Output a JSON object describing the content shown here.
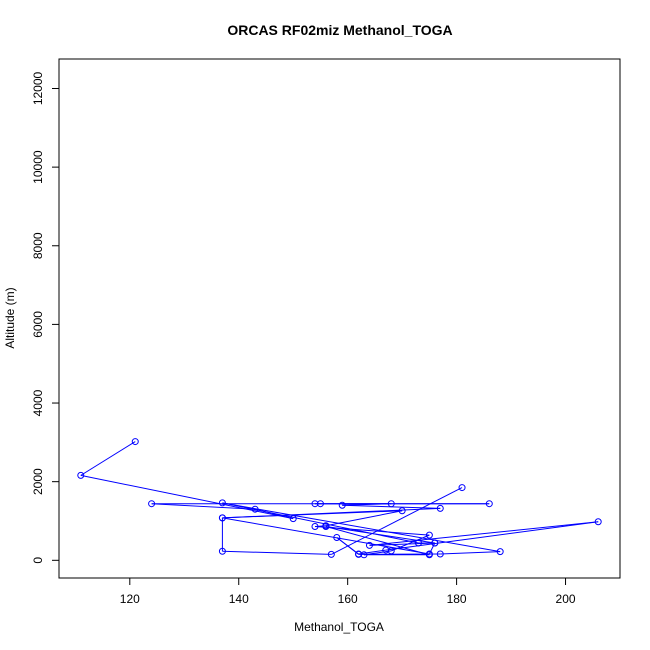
{
  "chart_data": {
    "type": "line",
    "title": "ORCAS RF02miz Methanol_TOGA",
    "xlabel": "Methanol_TOGA",
    "ylabel": "Altitude (m)",
    "xlim": [
      107,
      210
    ],
    "ylim": [
      -450,
      12750
    ],
    "x_ticks": [
      120,
      140,
      160,
      180,
      200
    ],
    "y_ticks": [
      0,
      2000,
      4000,
      6000,
      8000,
      10000,
      12000
    ],
    "x_tick_labels": [
      "120",
      "140",
      "160",
      "180",
      "200"
    ],
    "y_tick_labels": [
      "0",
      "2000",
      "4000",
      "6000",
      "8000",
      "10000",
      "12000"
    ],
    "series_color": "#0000ff",
    "grid": false,
    "markers": "open-circle",
    "points": [
      {
        "x": 121,
        "y": 3020
      },
      {
        "x": 111,
        "y": 2160
      },
      {
        "x": 150,
        "y": 1060
      },
      {
        "x": 143,
        "y": 1300
      },
      {
        "x": 124,
        "y": 1440
      },
      {
        "x": 186,
        "y": 1440
      },
      {
        "x": 154,
        "y": 1440
      },
      {
        "x": 155,
        "y": 1440
      },
      {
        "x": 168,
        "y": 1440
      },
      {
        "x": 159,
        "y": 1400
      },
      {
        "x": 177,
        "y": 1320
      },
      {
        "x": 137,
        "y": 1080
      },
      {
        "x": 170,
        "y": 1260
      },
      {
        "x": 156,
        "y": 880
      },
      {
        "x": 154,
        "y": 860
      },
      {
        "x": 175,
        "y": 640
      },
      {
        "x": 168,
        "y": 240
      },
      {
        "x": 163,
        "y": 140
      },
      {
        "x": 175,
        "y": 140
      },
      {
        "x": 156,
        "y": 860
      },
      {
        "x": 176,
        "y": 440
      },
      {
        "x": 164,
        "y": 380
      },
      {
        "x": 206,
        "y": 980
      },
      {
        "x": 167,
        "y": 260
      },
      {
        "x": 162,
        "y": 160
      },
      {
        "x": 158,
        "y": 580
      },
      {
        "x": 162,
        "y": 150
      },
      {
        "x": 177,
        "y": 160
      },
      {
        "x": 188,
        "y": 220
      },
      {
        "x": 137,
        "y": 1460
      },
      {
        "x": 173,
        "y": 440
      },
      {
        "x": 176,
        "y": 440
      },
      {
        "x": 175,
        "y": 160
      },
      {
        "x": 137,
        "y": 1080
      },
      {
        "x": 137,
        "y": 230
      },
      {
        "x": 157,
        "y": 150
      },
      {
        "x": 181,
        "y": 1850
      }
    ]
  }
}
